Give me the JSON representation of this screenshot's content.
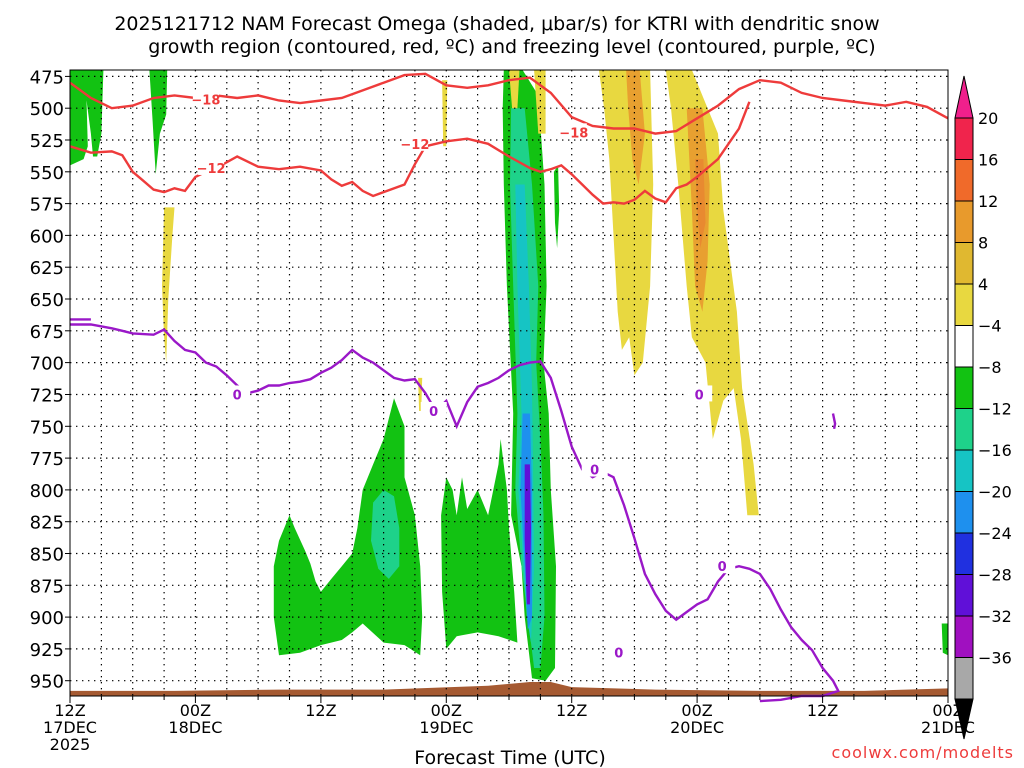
{
  "chart_data": {
    "type": "heatmap",
    "title_line1": "2025121712 NAM Forecast Omega (shaded, μbar/s) for KTRI with dendritic snow",
    "title_line2": "growth region (contoured, red, ºC) and freezing level (contoured, purple, ºC)",
    "xlabel": "Forecast Time (UTC)",
    "watermark": "coolwx.com/modelts",
    "y_ticks": [
      475,
      500,
      525,
      550,
      575,
      600,
      625,
      650,
      675,
      700,
      725,
      750,
      775,
      800,
      825,
      850,
      875,
      900,
      925,
      950
    ],
    "ylim_hpa": [
      470,
      962
    ],
    "xlim_hours": [
      0,
      84
    ],
    "x_ticks": [
      {
        "hour": 0,
        "line1": "12Z",
        "line2": "17DEC",
        "line3": "2025"
      },
      {
        "hour": 12,
        "line1": "00Z",
        "line2": "18DEC",
        "line3": ""
      },
      {
        "hour": 24,
        "line1": "12Z",
        "line2": "",
        "line3": ""
      },
      {
        "hour": 36,
        "line1": "00Z",
        "line2": "19DEC",
        "line3": ""
      },
      {
        "hour": 48,
        "line1": "12Z",
        "line2": "",
        "line3": ""
      },
      {
        "hour": 60,
        "line1": "00Z",
        "line2": "20DEC",
        "line3": ""
      },
      {
        "hour": 72,
        "line1": "12Z",
        "line2": "",
        "line3": ""
      },
      {
        "hour": 84,
        "line1": "00Z",
        "line2": "21DEC",
        "line3": ""
      }
    ],
    "colorbar": [
      {
        "label": "20",
        "color": "#f0244c"
      },
      {
        "label": "16",
        "color": "#f06a2a"
      },
      {
        "label": "12",
        "color": "#e89a2c"
      },
      {
        "label": "8",
        "color": "#e0b830"
      },
      {
        "label": "4",
        "color": "#e8d840"
      },
      {
        "label": "−4",
        "color": "#ffffff"
      },
      {
        "label": "−8",
        "color": "#12c212"
      },
      {
        "label": "−12",
        "color": "#1ed28a"
      },
      {
        "label": "−16",
        "color": "#16c4c4"
      },
      {
        "label": "−20",
        "color": "#1e90ee"
      },
      {
        "label": "−24",
        "color": "#2030e0"
      },
      {
        "label": "−28",
        "color": "#6010d8"
      },
      {
        "label": "−32",
        "color": "#a010c0"
      },
      {
        "label": "−36",
        "color": "#a8a8a8"
      }
    ],
    "colors": {
      "dgz": "#ee3b3b",
      "freezing": "#9a18c8",
      "ground": "#a55a32",
      "green": "#12c212",
      "teal": "#1ed28a",
      "cyan": "#16c4c4",
      "blue": "#1e90ee",
      "purple": "#6010d8",
      "yellow": "#e8d840",
      "orange": "#e8a030",
      "dorange": "#e88a30",
      "watermark": "#ee3b3b",
      "arrow_top": "#f0208c"
    },
    "contour_labels": [
      {
        "text": "−18",
        "hour": 13,
        "hpa": 493,
        "color": "dgz"
      },
      {
        "text": "−18",
        "hour": 48.2,
        "hpa": 519,
        "color": "dgz"
      },
      {
        "text": "−12",
        "hour": 13.5,
        "hpa": 547,
        "color": "dgz"
      },
      {
        "text": "−12",
        "hour": 33,
        "hpa": 528,
        "color": "dgz"
      },
      {
        "text": "0",
        "hour": 16,
        "hpa": 725,
        "color": "freezing"
      },
      {
        "text": "0",
        "hour": 34.8,
        "hpa": 738,
        "color": "freezing"
      },
      {
        "text": "0",
        "hour": 50.2,
        "hpa": 784,
        "color": "freezing"
      },
      {
        "text": "0",
        "hour": 62.4,
        "hpa": 860,
        "color": "freezing"
      },
      {
        "text": "0",
        "hour": 52.5,
        "hpa": 928,
        "color": "freezing"
      },
      {
        "text": "0",
        "hour": 60.2,
        "hpa": 725,
        "color": "freezing"
      }
    ],
    "dgz_upper_minus18": [
      [
        0,
        480
      ],
      [
        2,
        492
      ],
      [
        4,
        500
      ],
      [
        6,
        498
      ],
      [
        8,
        492
      ],
      [
        10,
        490
      ],
      [
        12,
        492
      ],
      [
        14,
        490
      ],
      [
        16,
        492
      ],
      [
        18,
        490
      ],
      [
        20,
        494
      ],
      [
        22,
        496
      ],
      [
        24,
        494
      ],
      [
        26,
        492
      ],
      [
        28,
        486
      ],
      [
        30,
        480
      ],
      [
        32,
        474
      ],
      [
        34,
        473
      ],
      [
        36,
        482
      ],
      [
        38,
        484
      ],
      [
        40,
        482
      ],
      [
        42,
        478
      ],
      [
        44,
        476
      ],
      [
        46,
        488
      ],
      [
        48,
        507
      ],
      [
        50,
        514
      ],
      [
        52,
        516
      ],
      [
        54,
        516
      ],
      [
        56,
        520
      ],
      [
        58,
        518
      ],
      [
        60,
        508
      ],
      [
        62,
        498
      ],
      [
        64,
        485
      ],
      [
        66,
        478
      ],
      [
        68,
        480
      ],
      [
        70,
        488
      ],
      [
        72,
        492
      ],
      [
        74,
        494
      ],
      [
        76,
        496
      ],
      [
        78,
        498
      ],
      [
        80,
        495
      ],
      [
        82,
        499
      ],
      [
        84,
        508
      ]
    ],
    "dgz_lower_minus12": [
      [
        0,
        530
      ],
      [
        2,
        535
      ],
      [
        4,
        534
      ],
      [
        5,
        537
      ],
      [
        6,
        550
      ],
      [
        7,
        557
      ],
      [
        8,
        564
      ],
      [
        9,
        566
      ],
      [
        10,
        563
      ],
      [
        11,
        565
      ],
      [
        12,
        554
      ],
      [
        13,
        550
      ],
      [
        14,
        547
      ],
      [
        16,
        538
      ],
      [
        18,
        546
      ],
      [
        20,
        548
      ],
      [
        22,
        546
      ],
      [
        24,
        549
      ],
      [
        25,
        556
      ],
      [
        26,
        561
      ],
      [
        27,
        558
      ],
      [
        28,
        565
      ],
      [
        29,
        569
      ],
      [
        30,
        566
      ],
      [
        32,
        560
      ],
      [
        33,
        544
      ],
      [
        34,
        530
      ],
      [
        35,
        528
      ],
      [
        36,
        526
      ],
      [
        38,
        524
      ],
      [
        40,
        528
      ],
      [
        42,
        538
      ],
      [
        44,
        547
      ],
      [
        45,
        550
      ],
      [
        46,
        548
      ],
      [
        47,
        545
      ],
      [
        48,
        552
      ],
      [
        49,
        560
      ],
      [
        50,
        568
      ],
      [
        51,
        575
      ],
      [
        52,
        574
      ],
      [
        53,
        575
      ],
      [
        54,
        572
      ],
      [
        55,
        565
      ],
      [
        56,
        571
      ],
      [
        57,
        574
      ],
      [
        58,
        563
      ],
      [
        59,
        560
      ],
      [
        60,
        554
      ],
      [
        62,
        540
      ],
      [
        64,
        516
      ],
      [
        65,
        495
      ]
    ],
    "freezing_line": [
      [
        0,
        670
      ],
      [
        2,
        670
      ],
      [
        4,
        673
      ],
      [
        5,
        675
      ],
      [
        6,
        677
      ],
      [
        8,
        678
      ],
      [
        9,
        674
      ],
      [
        10,
        683
      ],
      [
        11,
        690
      ],
      [
        12,
        692
      ],
      [
        13,
        700
      ],
      [
        14,
        703
      ],
      [
        15,
        710
      ],
      [
        16,
        718
      ],
      [
        17,
        724
      ],
      [
        18,
        722
      ],
      [
        19,
        718
      ],
      [
        20,
        718
      ],
      [
        21,
        716
      ],
      [
        22,
        715
      ],
      [
        23,
        713
      ],
      [
        24,
        708
      ],
      [
        25,
        704
      ],
      [
        26,
        698
      ],
      [
        27,
        690
      ],
      [
        28,
        696
      ],
      [
        29,
        700
      ],
      [
        30,
        706
      ],
      [
        31,
        712
      ],
      [
        32,
        714
      ],
      [
        33,
        713
      ],
      [
        34,
        724
      ],
      [
        35,
        738
      ],
      [
        36,
        730
      ],
      [
        37,
        750
      ],
      [
        38,
        731
      ],
      [
        39,
        719
      ],
      [
        40,
        716
      ],
      [
        41,
        712
      ],
      [
        42,
        706
      ],
      [
        43,
        702
      ],
      [
        44,
        700
      ],
      [
        45,
        699
      ],
      [
        46,
        712
      ],
      [
        47,
        738
      ],
      [
        48,
        766
      ],
      [
        49,
        784
      ],
      [
        50,
        790
      ],
      [
        51,
        786
      ],
      [
        52,
        790
      ],
      [
        53,
        812
      ],
      [
        54,
        838
      ],
      [
        55,
        866
      ],
      [
        56,
        882
      ],
      [
        57,
        895
      ],
      [
        58,
        902
      ],
      [
        59,
        896
      ],
      [
        60,
        890
      ],
      [
        61,
        886
      ],
      [
        62,
        872
      ],
      [
        63,
        862
      ],
      [
        64,
        860
      ],
      [
        65,
        862
      ],
      [
        66,
        866
      ],
      [
        67,
        878
      ],
      [
        68,
        894
      ],
      [
        69,
        908
      ],
      [
        70,
        918
      ],
      [
        71,
        926
      ],
      [
        72,
        940
      ],
      [
        73,
        950
      ],
      [
        73.5,
        958
      ],
      [
        72,
        962
      ],
      [
        70,
        962
      ],
      [
        68,
        965
      ],
      [
        66,
        966
      ]
    ],
    "freezing_lobe": [
      [
        0,
        666
      ],
      [
        2,
        666
      ]
    ],
    "ground_top_hpa": [
      [
        0,
        958
      ],
      [
        10,
        958
      ],
      [
        20,
        957
      ],
      [
        30,
        957
      ],
      [
        40,
        954
      ],
      [
        44,
        951
      ],
      [
        46,
        951
      ],
      [
        48,
        955
      ],
      [
        56,
        957
      ],
      [
        66,
        958
      ],
      [
        76,
        958
      ],
      [
        84,
        956
      ]
    ]
  }
}
